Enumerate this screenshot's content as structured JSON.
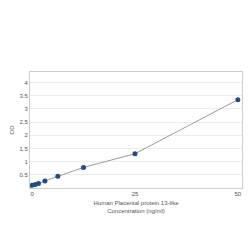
{
  "chart_data": {
    "type": "line",
    "marker": "circle",
    "xlabel": "Human Placental protein 13-like\nConcentration (ng/ml)",
    "ylabel": "OD",
    "x": [
      0,
      0.78,
      1.56,
      3.125,
      6.25,
      12.5,
      25,
      50
    ],
    "values": [
      0.1,
      0.13,
      0.17,
      0.27,
      0.45,
      0.78,
      1.3,
      3.35
    ],
    "color": "#1f4b87",
    "xlim": [
      -0.5,
      51
    ],
    "xticks": [
      0,
      25,
      50
    ],
    "ylim": [
      0,
      4.4
    ],
    "yticks": [
      0.5,
      1,
      1.5,
      2,
      2.5,
      3,
      3.5,
      4
    ],
    "grid": true
  }
}
